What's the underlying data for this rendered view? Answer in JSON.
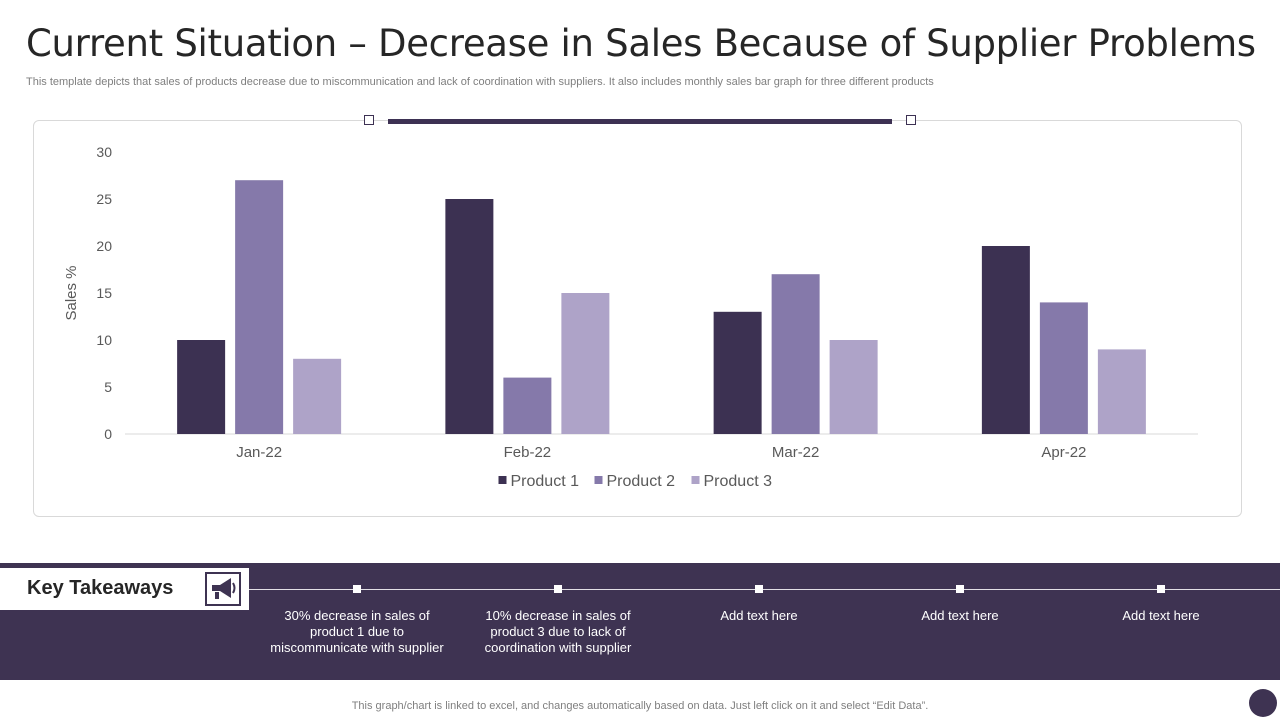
{
  "header": {
    "title": "Current Situation – Decrease in Sales Because of Supplier Problems",
    "subtitle": "This template depicts that sales of products decrease due to miscommunication and lack of coordination with suppliers. It also includes monthly sales bar graph for three different products"
  },
  "chart_data": {
    "type": "bar",
    "categories": [
      "Jan-22",
      "Feb-22",
      "Mar-22",
      "Apr-22"
    ],
    "series": [
      {
        "name": "Product 1",
        "values": [
          10,
          25,
          13,
          20
        ],
        "color": "#3c3152"
      },
      {
        "name": "Product 2",
        "values": [
          27,
          6,
          17,
          14
        ],
        "color": "#8579aa"
      },
      {
        "name": "Product 3",
        "values": [
          8,
          15,
          10,
          9
        ],
        "color": "#aea3c8"
      }
    ],
    "ylabel": "Sales %",
    "ylim": [
      0,
      30
    ],
    "yticks": [
      0,
      5,
      10,
      15,
      20,
      25,
      30
    ],
    "grid": false,
    "legend": "bottom"
  },
  "takeaways": {
    "label": "Key Takeaways",
    "icon": "megaphone-icon",
    "items": [
      "30% decrease in sales of product 1 due to miscommunicate with supplier",
      "10% decrease in sales of product 3 due to lack of coordination with supplier",
      "Add text here",
      "Add text here",
      "Add text here"
    ]
  },
  "footer": {
    "note": "This graph/chart is linked to excel, and changes automatically based on data. Just left click on it and select “Edit Data”."
  },
  "colors": {
    "accent": "#3e3352",
    "product1": "#3c3152",
    "product2": "#8579aa",
    "product3": "#aea3c8"
  }
}
